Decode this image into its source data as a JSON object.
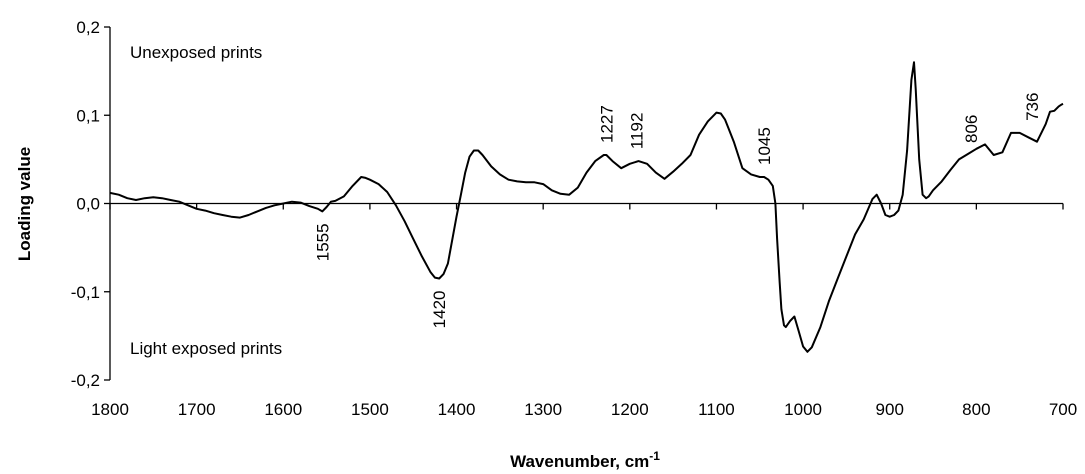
{
  "chart_data": {
    "type": "line",
    "title": "",
    "xlabel": "Wavenumber, cm",
    "xlabel_superscript": "-1",
    "ylabel": "Loading value",
    "xlim": [
      1800,
      700
    ],
    "ylim": [
      -0.2,
      0.2
    ],
    "x_reversed": true,
    "x_ticks": [
      1800,
      1700,
      1600,
      1500,
      1400,
      1300,
      1200,
      1100,
      1000,
      900,
      800,
      700
    ],
    "x_tick_labels": [
      "1800",
      "1700",
      "1600",
      "1500",
      "1400",
      "1300",
      "1200",
      "1100",
      "1000",
      "900",
      "800",
      "700"
    ],
    "y_ticks": [
      -0.2,
      -0.1,
      0.0,
      0.1,
      0.2
    ],
    "y_tick_labels": [
      "-0,2",
      "-0,1",
      "0,0",
      "0,1",
      "0,2"
    ],
    "grid": false,
    "annotations": [
      {
        "text": "Unexposed prints"
      },
      {
        "text": "Light exposed prints"
      }
    ],
    "peak_labels": [
      "1555",
      "1420",
      "1227",
      "1192",
      "1045",
      "806",
      "736"
    ],
    "peak_positions": [
      {
        "label": "1555",
        "x": 1555,
        "y": -0.009
      },
      {
        "label": "1420",
        "x": 1420,
        "y": -0.085
      },
      {
        "label": "1227",
        "x": 1227,
        "y": 0.055
      },
      {
        "label": "1192",
        "x": 1192,
        "y": 0.048
      },
      {
        "label": "1045",
        "x": 1045,
        "y": 0.03
      },
      {
        "label": "806",
        "x": 806,
        "y": 0.055
      },
      {
        "label": "736",
        "x": 736,
        "y": 0.08
      }
    ],
    "series": [
      {
        "x": [
          1800,
          1790,
          1780,
          1770,
          1760,
          1750,
          1740,
          1730,
          1720,
          1710,
          1700,
          1690,
          1680,
          1670,
          1660,
          1650,
          1640,
          1630,
          1620,
          1610,
          1600,
          1590,
          1580,
          1570,
          1560,
          1555,
          1550,
          1545,
          1540,
          1530,
          1520,
          1510,
          1505,
          1500,
          1490,
          1480,
          1470,
          1460,
          1450,
          1440,
          1430,
          1425,
          1420,
          1415,
          1410,
          1400,
          1395,
          1390,
          1385,
          1380,
          1375,
          1370,
          1360,
          1350,
          1340,
          1330,
          1320,
          1310,
          1300,
          1290,
          1280,
          1270,
          1260,
          1250,
          1240,
          1230,
          1227,
          1220,
          1210,
          1200,
          1190,
          1180,
          1170,
          1160,
          1150,
          1140,
          1130,
          1120,
          1110,
          1100,
          1095,
          1090,
          1080,
          1070,
          1060,
          1050,
          1045,
          1040,
          1035,
          1032,
          1030,
          1027,
          1025,
          1022,
          1020,
          1015,
          1010,
          1005,
          1000,
          995,
          990,
          980,
          970,
          960,
          950,
          940,
          930,
          920,
          915,
          910,
          905,
          900,
          895,
          890,
          885,
          880,
          875,
          872,
          870,
          866,
          862,
          858,
          855,
          850,
          840,
          830,
          820,
          810,
          800,
          790,
          780,
          770,
          760,
          750,
          740,
          730,
          720,
          715,
          710,
          705,
          702,
          700
        ],
        "y": [
          0.012,
          0.01,
          0.006,
          0.004,
          0.006,
          0.007,
          0.006,
          0.004,
          0.002,
          -0.002,
          -0.006,
          -0.008,
          -0.011,
          -0.013,
          -0.015,
          -0.016,
          -0.013,
          -0.009,
          -0.005,
          -0.002,
          0.0,
          0.002,
          0.001,
          -0.003,
          -0.006,
          -0.009,
          -0.004,
          0.002,
          0.003,
          0.008,
          0.02,
          0.03,
          0.029,
          0.027,
          0.022,
          0.013,
          -0.002,
          -0.02,
          -0.04,
          -0.06,
          -0.078,
          -0.084,
          -0.085,
          -0.08,
          -0.068,
          -0.015,
          0.01,
          0.035,
          0.053,
          0.06,
          0.06,
          0.055,
          0.042,
          0.033,
          0.027,
          0.025,
          0.024,
          0.024,
          0.022,
          0.015,
          0.011,
          0.01,
          0.018,
          0.035,
          0.048,
          0.055,
          0.055,
          0.048,
          0.04,
          0.045,
          0.048,
          0.045,
          0.035,
          0.028,
          0.036,
          0.045,
          0.055,
          0.078,
          0.093,
          0.103,
          0.102,
          0.095,
          0.07,
          0.04,
          0.033,
          0.03,
          0.03,
          0.027,
          0.02,
          0.0,
          -0.04,
          -0.09,
          -0.12,
          -0.138,
          -0.14,
          -0.133,
          -0.128,
          -0.145,
          -0.162,
          -0.168,
          -0.163,
          -0.14,
          -0.11,
          -0.085,
          -0.06,
          -0.035,
          -0.018,
          0.005,
          0.01,
          0.0,
          -0.013,
          -0.015,
          -0.013,
          -0.008,
          0.01,
          0.06,
          0.14,
          0.16,
          0.13,
          0.05,
          0.01,
          0.006,
          0.008,
          0.015,
          0.025,
          0.038,
          0.05,
          0.056,
          0.062,
          0.067,
          0.055,
          0.058,
          0.08,
          0.08,
          0.075,
          0.07,
          0.09,
          0.104,
          0.105,
          0.11,
          0.112,
          0.113
        ]
      }
    ]
  }
}
